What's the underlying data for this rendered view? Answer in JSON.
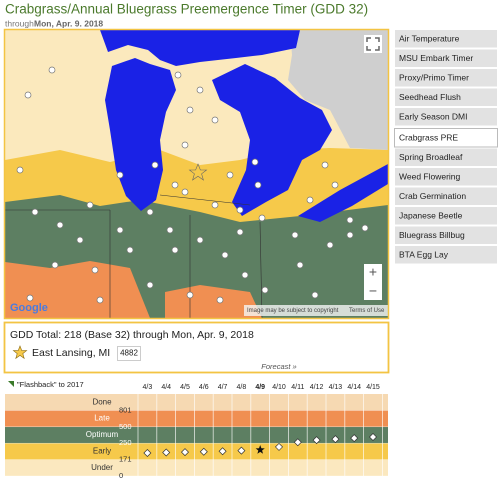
{
  "header": {
    "title": "Crabgrass/Annual Bluegrass Preemergence Timer (GDD 32)",
    "subtitle_prefix": "through",
    "subtitle_date": "Mon, Apr. 9. 2018"
  },
  "menu": {
    "items": [
      "Air Temperature",
      "MSU Embark Timer",
      "Proxy/Primo Timer",
      "Seedhead Flush",
      "Early Season DMI",
      "Crabgrass PRE",
      "Spring Broadleaf",
      "Weed Flowering",
      "Crab Germination",
      "Japanese Beetle",
      "Bluegrass Billbug",
      "BTA Egg Lay"
    ],
    "selected": 5
  },
  "map": {
    "logo": "Google",
    "copyright": "Image may be subject to copyright",
    "terms": "Terms of Use",
    "zoom_in": "+",
    "zoom_out": "−"
  },
  "info": {
    "summary": "GDD Total: 218 (Base 32) through Mon, Apr. 9, 2018",
    "location": "East Lansing, MI",
    "station_id": "4882"
  },
  "chart_data": {
    "type": "dot",
    "flashback_label": "\"Flashback\" to 2017",
    "forecast_label": "Forecast »",
    "categories": [
      "4/3",
      "4/4",
      "4/5",
      "4/6",
      "4/7",
      "4/8",
      "4/9",
      "4/10",
      "4/11",
      "4/12",
      "4/13",
      "4/14",
      "4/15"
    ],
    "values": [
      203,
      205,
      207,
      209,
      211,
      214,
      218,
      232,
      265,
      297,
      312,
      328,
      344
    ],
    "current": 6,
    "yticks": [
      0,
      171,
      250,
      500,
      801
    ],
    "bands": [
      {
        "name": "Under",
        "color": "#fbe8bf"
      },
      {
        "name": "Early",
        "color": "#f6c94a"
      },
      {
        "name": "Optimum",
        "color": "#5d7f62"
      },
      {
        "name": "Late",
        "color": "#f08f52"
      },
      {
        "name": "Done",
        "color": "#f6d9b2"
      }
    ]
  }
}
